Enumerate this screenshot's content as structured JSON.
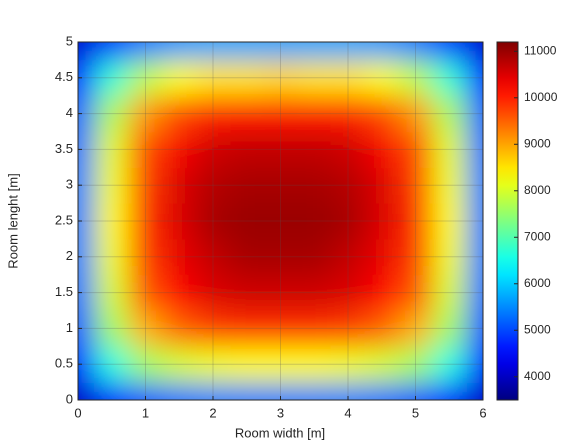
{
  "chart_data": {
    "type": "heatmap",
    "colormap": "jet",
    "grid": true,
    "xlabel": "Room width [m]",
    "ylabel": "Room lenght [m]",
    "x": [
      0,
      0.5,
      1,
      1.5,
      2,
      2.5,
      3,
      3.5,
      4,
      4.5,
      5,
      5.5,
      6
    ],
    "y": [
      0,
      0.5,
      1,
      1.5,
      2,
      2.5,
      3,
      3.5,
      4,
      4.5,
      5
    ],
    "values": [
      [
        4000,
        4700,
        5100,
        5300,
        5400,
        5400,
        5400,
        5400,
        5400,
        5300,
        5100,
        4700,
        4000
      ],
      [
        4700,
        6600,
        7600,
        8000,
        8200,
        8300,
        8300,
        8300,
        8200,
        8000,
        7600,
        6600,
        4700
      ],
      [
        5100,
        7600,
        8900,
        9500,
        9800,
        9900,
        9900,
        9900,
        9800,
        9500,
        8900,
        7600,
        5100
      ],
      [
        5300,
        8000,
        9600,
        10200,
        10500,
        10600,
        10600,
        10600,
        10500,
        10200,
        9600,
        8000,
        5300
      ],
      [
        5400,
        8200,
        9800,
        10400,
        10700,
        10900,
        10900,
        10900,
        10700,
        10400,
        9800,
        8200,
        5400
      ],
      [
        5400,
        8300,
        9900,
        10500,
        10900,
        11000,
        11000,
        11000,
        10900,
        10500,
        9900,
        8300,
        5400
      ],
      [
        5400,
        8200,
        9800,
        10500,
        10800,
        10900,
        10900,
        10900,
        10800,
        10500,
        9800,
        8200,
        5400
      ],
      [
        5300,
        8100,
        9700,
        10300,
        10600,
        10700,
        10700,
        10700,
        10600,
        10300,
        9700,
        8100,
        5300
      ],
      [
        5200,
        7700,
        9100,
        9700,
        10000,
        10100,
        10100,
        10100,
        10000,
        9700,
        9100,
        7700,
        5200
      ],
      [
        4800,
        6700,
        7800,
        8300,
        8500,
        8500,
        8600,
        8500,
        8500,
        8300,
        7800,
        6700,
        4800
      ],
      [
        4100,
        4900,
        5400,
        5600,
        5700,
        5700,
        5700,
        5700,
        5700,
        5600,
        5400,
        4900,
        4100
      ]
    ],
    "xlim": [
      0,
      6
    ],
    "xticks": [
      0,
      1,
      2,
      3,
      4,
      5,
      6
    ],
    "ylim": [
      0,
      5
    ],
    "yticks": [
      0,
      0.5,
      1,
      1.5,
      2,
      2.5,
      3,
      3.5,
      4,
      4.5,
      5
    ],
    "clim": [
      3500,
      11200
    ],
    "cticks": [
      4000,
      5000,
      6000,
      7000,
      8000,
      9000,
      10000,
      11000
    ]
  }
}
